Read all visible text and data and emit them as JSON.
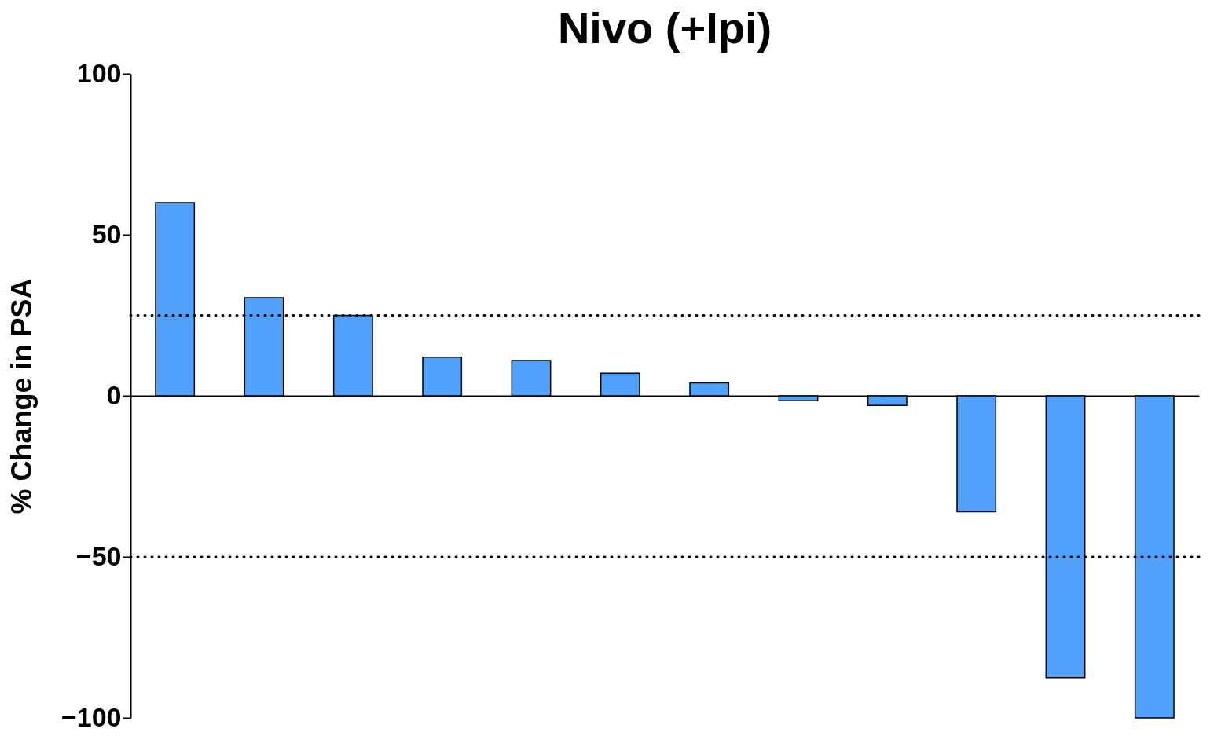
{
  "chart_data": {
    "type": "bar",
    "title": "Nivo (+Ipi)",
    "ylabel": "% Change in PSA",
    "categories": [
      null,
      null,
      null,
      null,
      null,
      null,
      null,
      null,
      null,
      null,
      null,
      null
    ],
    "values": [
      60,
      30.5,
      25,
      12,
      11,
      7,
      4,
      -1.5,
      -3,
      -36,
      -87.5,
      -100
    ],
    "color": "#51a0fa",
    "ylim": [
      -100,
      100
    ],
    "yticks": [
      -100,
      -50,
      0,
      50,
      100
    ],
    "ref_lines": [
      {
        "axis": "y",
        "value": 25,
        "line_style": "dotted"
      },
      {
        "axis": "y",
        "value": -50,
        "line_style": "dotted"
      }
    ],
    "tick_labels": "y",
    "grid": false
  }
}
